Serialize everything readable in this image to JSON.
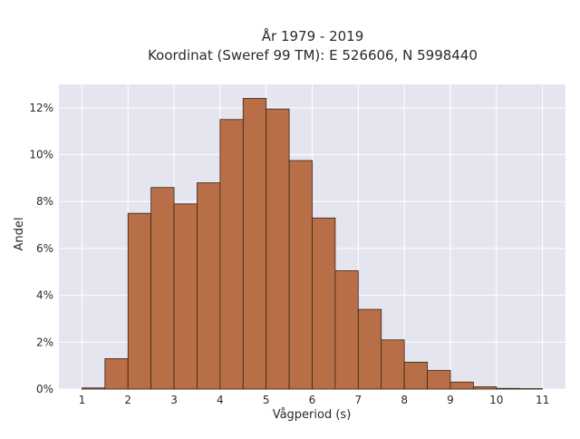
{
  "chart_data": {
    "type": "bar",
    "title": [
      "År 1979 - 2019",
      "Koordinat (Sweref 99 TM): E 526606, N 5998440"
    ],
    "xlabel": "Vågperiod (s)",
    "ylabel": "Andel",
    "xlim": [
      0.5,
      11.5
    ],
    "ylim": [
      0,
      13
    ],
    "bin_width": 0.5,
    "bins": [
      {
        "x0": 1.0,
        "x1": 1.5,
        "value": 0.05
      },
      {
        "x0": 1.5,
        "x1": 2.0,
        "value": 1.3
      },
      {
        "x0": 2.0,
        "x1": 2.5,
        "value": 7.5
      },
      {
        "x0": 2.5,
        "x1": 3.0,
        "value": 8.6
      },
      {
        "x0": 3.0,
        "x1": 3.5,
        "value": 7.9
      },
      {
        "x0": 3.5,
        "x1": 4.0,
        "value": 8.8
      },
      {
        "x0": 4.0,
        "x1": 4.5,
        "value": 11.5
      },
      {
        "x0": 4.5,
        "x1": 5.0,
        "value": 12.4
      },
      {
        "x0": 5.0,
        "x1": 5.5,
        "value": 11.95
      },
      {
        "x0": 5.5,
        "x1": 6.0,
        "value": 9.75
      },
      {
        "x0": 6.0,
        "x1": 6.5,
        "value": 7.3
      },
      {
        "x0": 6.5,
        "x1": 7.0,
        "value": 5.05
      },
      {
        "x0": 7.0,
        "x1": 7.5,
        "value": 3.4
      },
      {
        "x0": 7.5,
        "x1": 8.0,
        "value": 2.1
      },
      {
        "x0": 8.0,
        "x1": 8.5,
        "value": 1.15
      },
      {
        "x0": 8.5,
        "x1": 9.0,
        "value": 0.8
      },
      {
        "x0": 9.0,
        "x1": 9.5,
        "value": 0.3
      },
      {
        "x0": 9.5,
        "x1": 10.0,
        "value": 0.1
      },
      {
        "x0": 10.0,
        "x1": 10.5,
        "value": 0.03
      },
      {
        "x0": 10.5,
        "x1": 11.0,
        "value": 0.02
      }
    ],
    "x_ticks": [
      1,
      2,
      3,
      4,
      5,
      6,
      7,
      8,
      9,
      10,
      11
    ],
    "x_tick_labels": [
      "1",
      "2",
      "3",
      "4",
      "5",
      "6",
      "7",
      "8",
      "9",
      "10",
      "11"
    ],
    "y_ticks": [
      0,
      2,
      4,
      6,
      8,
      10,
      12
    ],
    "y_tick_labels": [
      "0%",
      "2%",
      "4%",
      "6%",
      "8%",
      "10%",
      "12%"
    ],
    "grid": true,
    "colors": {
      "bar_fill": "#b86f48",
      "bar_stroke": "#3b2416",
      "plot_bg": "#e5e5ef",
      "grid": "#ffffff"
    }
  }
}
